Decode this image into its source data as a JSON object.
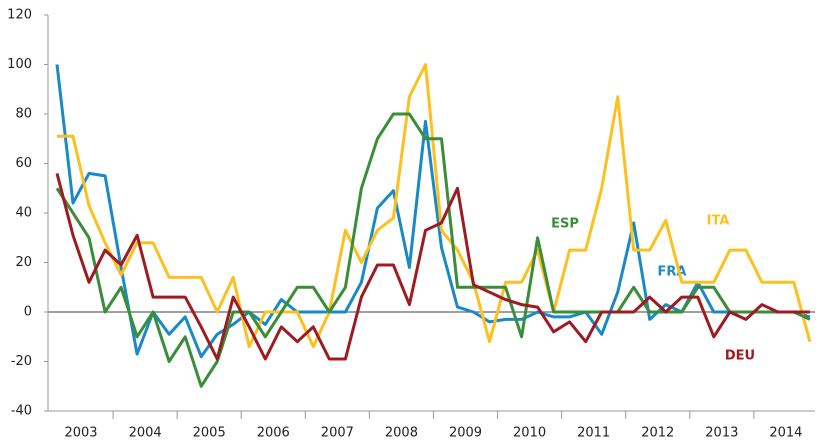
{
  "chart_data": {
    "type": "line",
    "categories": [
      "2003",
      null,
      null,
      null,
      "2004",
      null,
      null,
      null,
      "2005",
      null,
      null,
      null,
      "2006",
      null,
      null,
      null,
      "2007",
      null,
      null,
      null,
      "2008",
      null,
      null,
      null,
      "2009",
      null,
      null,
      null,
      "2010",
      null,
      null,
      null,
      "2011",
      null,
      null,
      null,
      "2012",
      null,
      null,
      null,
      "2013",
      null,
      null,
      null,
      "2014",
      null,
      null,
      null
    ],
    "series": [
      {
        "name": "FRA",
        "color": "#1a8ac6",
        "values": [
          100,
          44,
          56,
          55,
          18,
          -17,
          0,
          -9,
          -2,
          -18,
          -9,
          -5,
          0,
          -5,
          5,
          0,
          0,
          0,
          0,
          12,
          42,
          49,
          18,
          77,
          26,
          2,
          0,
          -4,
          -3,
          -3,
          0,
          -2,
          -2,
          0,
          -9,
          8,
          36,
          -3,
          3,
          0,
          12,
          0,
          0,
          0,
          0,
          0,
          0,
          -2
        ]
      },
      {
        "name": "ITA",
        "color": "#fcc020",
        "values": [
          71,
          71,
          43,
          28,
          15,
          28,
          28,
          14,
          14,
          14,
          0,
          14,
          -14,
          0,
          0,
          0,
          -14,
          0,
          33,
          20,
          33,
          38,
          87,
          100,
          33,
          25,
          12,
          -12,
          12,
          12,
          25,
          0,
          25,
          25,
          50,
          87,
          25,
          25,
          37,
          12,
          12,
          12,
          25,
          25,
          12,
          12,
          12,
          -12
        ]
      },
      {
        "name": "ESP",
        "color": "#3a8e3a",
        "values": [
          50,
          40,
          30,
          0,
          10,
          -10,
          0,
          -20,
          -10,
          -30,
          -20,
          0,
          0,
          -10,
          0,
          10,
          10,
          0,
          10,
          50,
          70,
          80,
          80,
          70,
          70,
          10,
          10,
          10,
          10,
          -10,
          30,
          0,
          0,
          0,
          0,
          0,
          10,
          0,
          0,
          0,
          10,
          10,
          0,
          0,
          0,
          0,
          0,
          -3
        ]
      },
      {
        "name": "DEU",
        "color": "#9e1b22",
        "values": [
          56,
          31,
          12,
          25,
          19,
          31,
          6,
          6,
          6,
          -6,
          -19,
          6,
          -6,
          -19,
          -6,
          -12,
          -6,
          -19,
          -19,
          6,
          19,
          19,
          3,
          33,
          36,
          50,
          11,
          8,
          5,
          3,
          2,
          -8,
          -4,
          -12,
          0,
          0,
          0,
          6,
          0,
          6,
          6,
          -10,
          0,
          -3,
          3,
          0,
          0,
          0
        ]
      }
    ],
    "ylim": [
      -40,
      120
    ],
    "yticks": [
      -40,
      -20,
      0,
      20,
      40,
      60,
      80,
      100,
      120
    ]
  }
}
